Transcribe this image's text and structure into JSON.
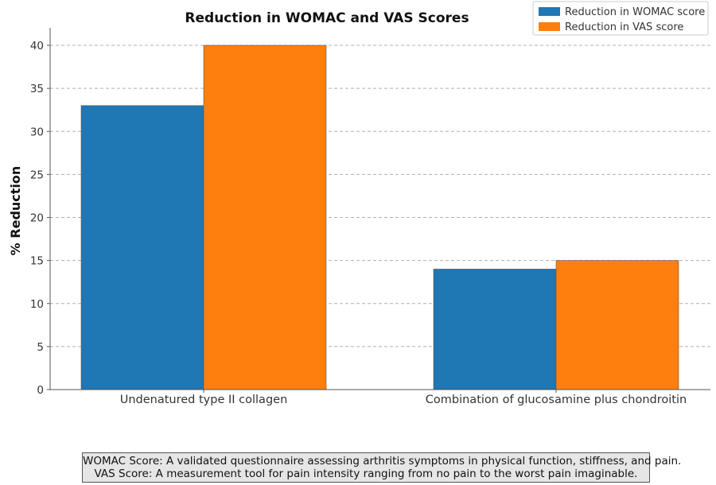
{
  "chart_data": {
    "type": "bar",
    "title": "Reduction in WOMAC and VAS Scores",
    "xlabel": "",
    "ylabel": "% Reduction",
    "categories": [
      "Undenatured type II collagen",
      "Combination of glucosamine plus chondroitin"
    ],
    "series": [
      {
        "name": "Reduction in WOMAC score",
        "values": [
          33,
          14
        ],
        "color": "#1f77b4"
      },
      {
        "name": "Reduction in VAS score",
        "values": [
          40,
          15
        ],
        "color": "#ff7f0e"
      }
    ],
    "ylim": [
      0,
      42
    ],
    "yticks": [
      0,
      5,
      10,
      15,
      20,
      25,
      30,
      35,
      40
    ],
    "grid": "horizontal dashed",
    "legend_position": "top-right"
  },
  "footnote": {
    "line1": "WOMAC Score: A validated questionnaire assessing arthritis symptoms in physical function, stiffness, and pain.",
    "line2": "VAS Score: A measurement tool for pain intensity ranging from no pain to the worst pain imaginable."
  }
}
